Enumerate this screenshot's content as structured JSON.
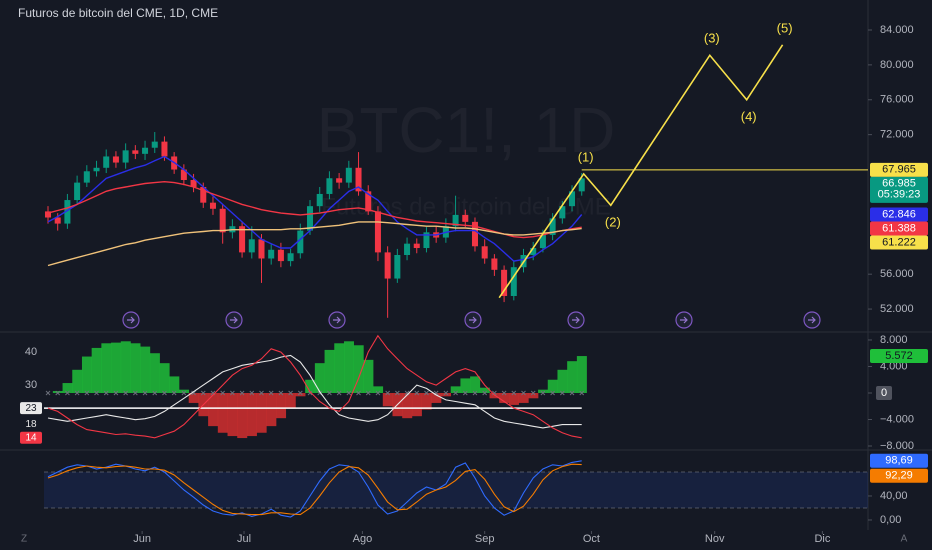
{
  "chart_data": [
    {
      "type": "candlestick",
      "title": "Futuros de bitcoin del CME, 1D, CME",
      "watermark": "BTC1!, 1D",
      "watermark_subtitle": "Futuros de bitcoin del CME",
      "x": [
        0,
        1,
        2,
        3,
        4,
        5,
        6,
        7,
        8,
        9,
        10,
        11,
        12,
        13,
        14,
        15,
        16,
        17,
        18,
        19,
        20,
        21,
        22,
        23,
        24,
        25,
        26,
        27,
        28,
        29,
        30,
        31,
        32,
        33,
        34,
        35,
        36,
        37,
        38,
        39,
        40,
        41,
        42,
        43,
        44,
        45,
        46,
        47,
        48,
        49,
        50,
        51,
        52,
        53,
        54,
        55
      ],
      "open": [
        63.2,
        62.5,
        61.8,
        64.5,
        66.5,
        67.8,
        68.2,
        69.5,
        68.8,
        70.2,
        69.8,
        70.5,
        71.2,
        69.5,
        68.0,
        66.8,
        66.0,
        64.2,
        63.5,
        60.8,
        61.5,
        58.5,
        60.0,
        57.8,
        58.8,
        57.5,
        58.4,
        61.0,
        63.8,
        65.2,
        67.0,
        66.5,
        68.2,
        65.5,
        63.2,
        58.5,
        55.5,
        58.2,
        59.5,
        59.0,
        60.8,
        60.2,
        61.5,
        62.8,
        62.0,
        59.2,
        57.8,
        56.5,
        53.5,
        56.8,
        58.2,
        59.0,
        60.5,
        62.4,
        63.8,
        65.5
      ],
      "high": [
        63.8,
        63.0,
        65.2,
        67.3,
        68.5,
        69.0,
        70.3,
        70.1,
        71.0,
        70.8,
        71.3,
        72.3,
        71.8,
        70.0,
        68.6,
        67.5,
        66.5,
        64.9,
        64.0,
        62.3,
        62.0,
        61.5,
        60.6,
        59.5,
        59.6,
        58.9,
        61.8,
        64.5,
        66.0,
        67.8,
        67.6,
        69.0,
        70.0,
        66.2,
        63.8,
        59.2,
        58.9,
        60.2,
        60.1,
        61.4,
        61.5,
        62.4,
        65.0,
        63.4,
        62.5,
        60.0,
        58.3,
        57.0,
        57.5,
        58.9,
        59.7,
        61.1,
        63.0,
        64.4,
        66.2,
        67.6
      ],
      "low": [
        61.8,
        61.0,
        61.2,
        64.0,
        66.0,
        67.2,
        67.6,
        68.2,
        68.1,
        69.2,
        69.1,
        69.9,
        69.0,
        67.5,
        66.2,
        65.4,
        63.6,
        62.8,
        59.5,
        60.1,
        57.9,
        57.8,
        55.0,
        57.1,
        56.8,
        56.9,
        57.8,
        60.5,
        63.1,
        64.6,
        65.8,
        65.9,
        65.0,
        62.8,
        57.5,
        51.0,
        55.0,
        57.6,
        58.4,
        58.5,
        59.6,
        59.6,
        60.9,
        61.4,
        58.6,
        57.2,
        55.8,
        52.8,
        53.0,
        56.2,
        57.6,
        58.5,
        59.9,
        61.8,
        63.2,
        65.0
      ],
      "close": [
        62.5,
        61.8,
        64.5,
        66.5,
        67.8,
        68.2,
        69.5,
        68.8,
        70.2,
        69.8,
        70.5,
        71.2,
        69.5,
        68.0,
        66.8,
        66.0,
        64.2,
        63.5,
        60.8,
        61.5,
        58.5,
        60.0,
        57.8,
        58.8,
        57.5,
        58.4,
        61.0,
        63.8,
        65.2,
        67.0,
        66.5,
        68.2,
        65.5,
        63.2,
        58.5,
        55.5,
        58.2,
        59.5,
        59.0,
        60.8,
        60.2,
        61.5,
        62.8,
        62.0,
        59.2,
        57.8,
        56.5,
        53.5,
        56.8,
        58.2,
        59.0,
        60.5,
        62.4,
        63.8,
        65.5,
        66.985
      ],
      "up_color": "#089981",
      "down_color": "#f23645",
      "series": [
        {
          "color": "#2a2ee8",
          "values": [
            62.0,
            62.6,
            63.3,
            64.0,
            65.0,
            66.0,
            67.0,
            67.4,
            67.8,
            68.2,
            68.5,
            69.0,
            69.5,
            68.8,
            68.0,
            67.0,
            66.0,
            65.0,
            64.0,
            63.0,
            62.0,
            61.0,
            60.0,
            59.5,
            59.0,
            59.0,
            60.0,
            61.0,
            62.2,
            63.5,
            64.5,
            65.5,
            66.0,
            65.2,
            64.5,
            63.2,
            62.0,
            61.2,
            60.5,
            60.5,
            60.5,
            60.8,
            61.0,
            61.0,
            61.0,
            60.2,
            59.5,
            58.5,
            57.5,
            57.7,
            58.0,
            58.8,
            59.5,
            60.5,
            61.5,
            62.846
          ]
        },
        {
          "color": "#f23645",
          "values": [
            63.0,
            63.3,
            63.6,
            64.0,
            64.5,
            65.0,
            65.5,
            65.8,
            66.0,
            66.2,
            66.4,
            66.5,
            66.6,
            66.5,
            66.3,
            66.0,
            65.6,
            65.2,
            64.8,
            64.4,
            64.0,
            63.7,
            63.4,
            63.2,
            63.0,
            62.9,
            62.8,
            62.9,
            63.0,
            63.2,
            63.4,
            63.5,
            63.6,
            63.4,
            63.1,
            62.8,
            62.5,
            62.3,
            62.1,
            62.0,
            61.9,
            61.8,
            61.7,
            61.6,
            61.5,
            61.2,
            60.9,
            60.6,
            60.3,
            60.2,
            60.3,
            60.5,
            60.8,
            61.0,
            61.2,
            61.388
          ]
        },
        {
          "color": "#f0c27a",
          "values": [
            57.0,
            57.3,
            57.6,
            57.9,
            58.2,
            58.5,
            58.8,
            59.1,
            59.4,
            59.6,
            59.9,
            60.1,
            60.3,
            60.5,
            60.7,
            60.8,
            60.9,
            61.0,
            61.0,
            61.1,
            61.1,
            61.1,
            61.1,
            61.1,
            61.1,
            61.2,
            61.2,
            61.3,
            61.4,
            61.5,
            61.6,
            61.8,
            62.0,
            62.0,
            62.0,
            61.9,
            61.8,
            61.7,
            61.6,
            61.5,
            61.5,
            61.4,
            61.3,
            61.3,
            61.2,
            61.0,
            60.8,
            60.6,
            60.5,
            60.5,
            60.6,
            60.7,
            60.8,
            61.0,
            61.1,
            61.222
          ]
        }
      ],
      "price_line": 67.965,
      "price_line_color": "#f7e04a",
      "countdown": "05:39:23",
      "wave": {
        "color": "#f7e04a",
        "x": [
          46.5,
          55.2,
          58.0,
          68.2,
          72.0,
          75.7
        ],
        "y": [
          53.3,
          67.5,
          63.9,
          81.1,
          76.0,
          82.3
        ],
        "labels": [
          null,
          "(1)",
          "(2)",
          "(3)",
          "(4)",
          "(5)"
        ]
      },
      "xlim": [
        0,
        84.5
      ],
      "xticks": [
        {
          "value": 9.7,
          "label": "Jun"
        },
        {
          "value": 20.2,
          "label": "Jul"
        },
        {
          "value": 32.4,
          "label": "Ago"
        },
        {
          "value": 45.0,
          "label": "Sep"
        },
        {
          "value": 56.0,
          "label": "Oct"
        },
        {
          "value": 68.7,
          "label": "Nov"
        },
        {
          "value": 79.8,
          "label": "Dic"
        }
      ],
      "ylim": [
        49.6,
        87.44
      ],
      "yticks": [
        {
          "value": 52,
          "label": "52.000"
        },
        {
          "value": 56,
          "label": "56.000"
        },
        {
          "value": 72,
          "label": "72.000"
        },
        {
          "value": 76,
          "label": "76.000"
        },
        {
          "value": 80,
          "label": "80.000"
        },
        {
          "value": 84,
          "label": "84.000"
        }
      ],
      "controls": [
        "Z",
        "A"
      ]
    },
    {
      "type": "momentum",
      "histogram": {
        "up_color": "#1fbf3a",
        "down_color": "#d32f2f",
        "values": [
          0,
          0.3,
          1.5,
          3.5,
          5.5,
          6.8,
          7.5,
          7.6,
          7.8,
          7.5,
          7,
          6,
          4.5,
          2.5,
          0.5,
          -1.5,
          -3.5,
          -5,
          -6,
          -6.5,
          -6.8,
          -6.5,
          -6,
          -5,
          -3.8,
          -2.2,
          -0.5,
          2,
          4.5,
          6.5,
          7.5,
          7.8,
          7.2,
          5,
          1,
          -2,
          -3.5,
          -3.8,
          -3.5,
          -2.5,
          -1.5,
          -0.5,
          1,
          2.2,
          2.5,
          0.8,
          -0.8,
          -1.5,
          -1.8,
          -1.5,
          -0.8,
          0.5,
          2,
          3.5,
          4.8,
          5.572
        ]
      },
      "ylim": [
        -8.3,
        8.75
      ],
      "yticks": [
        {
          "value": 8,
          "label": "8.000"
        },
        {
          "value": 4,
          "label": "4.000"
        },
        0,
        {
          "value": -4,
          "label": "−4.000"
        },
        {
          "value": -8,
          "label": "−8.000"
        }
      ],
      "y2lim": [
        10.9,
        45.2
      ],
      "y2ticks": [
        40,
        30
      ],
      "key_level": 23,
      "series": [
        {
          "color": "#e8e8e8",
          "axis": "y2",
          "values": [
            20,
            19.5,
            19,
            19.5,
            20,
            20.5,
            21,
            20.5,
            20,
            19.5,
            19.8,
            20.5,
            22,
            24,
            26,
            28,
            30,
            32,
            34,
            35,
            36,
            36.5,
            37,
            37.5,
            38.5,
            39,
            37,
            33,
            28,
            24,
            21,
            20,
            19.5,
            19,
            19.5,
            21,
            24,
            27,
            30,
            29,
            27,
            25.5,
            25,
            24.5,
            24,
            22,
            20,
            19,
            18.5,
            18,
            17.5,
            17,
            17.5,
            18,
            18,
            18
          ]
        },
        {
          "color": "#f23645",
          "axis": "y2",
          "values": [
            23,
            22,
            20,
            18,
            16.5,
            16,
            15.5,
            15,
            15.2,
            14.8,
            14.5,
            14,
            15,
            16,
            18,
            21,
            24,
            27,
            30,
            33,
            35,
            36,
            38,
            41,
            40,
            37,
            33,
            28,
            25,
            23,
            22,
            25,
            32,
            40,
            45,
            41,
            38,
            35,
            33,
            31,
            30,
            32,
            34,
            35,
            34,
            30,
            27,
            25,
            23,
            22,
            21,
            19,
            17,
            15.5,
            14.5,
            14
          ]
        }
      ]
    },
    {
      "type": "stochastic",
      "ylim": [
        -16.7,
        113.3
      ],
      "yticks": [
        {
          "value": 40,
          "label": "40,00"
        },
        {
          "value": 0,
          "label": "0,00"
        }
      ],
      "bands": [
        20,
        80
      ],
      "series": [
        {
          "color": "#2f6bff",
          "last_label": "98,69",
          "values": [
            72,
            80,
            88,
            92,
            90,
            85,
            88,
            93,
            90,
            85,
            82,
            88,
            80,
            65,
            50,
            38,
            25,
            15,
            10,
            8,
            12,
            6,
            10,
            18,
            8,
            5,
            15,
            40,
            65,
            85,
            92,
            90,
            80,
            55,
            25,
            10,
            15,
            30,
            45,
            55,
            50,
            60,
            88,
            95,
            70,
            40,
            20,
            8,
            15,
            45,
            70,
            85,
            92,
            90,
            96,
            98.69
          ]
        },
        {
          "color": "#f57c00",
          "last_label": "92,29",
          "values": [
            70,
            75,
            82,
            87,
            90,
            88,
            87,
            89,
            90,
            88,
            85,
            85,
            83,
            75,
            62,
            50,
            38,
            26,
            16,
            11,
            10,
            9,
            9,
            12,
            12,
            10,
            9,
            20,
            40,
            62,
            80,
            89,
            87,
            75,
            53,
            30,
            17,
            18,
            30,
            43,
            50,
            55,
            66,
            81,
            84,
            68,
            43,
            22,
            14,
            23,
            43,
            67,
            82,
            89,
            93,
            92.29
          ]
        }
      ]
    }
  ]
}
